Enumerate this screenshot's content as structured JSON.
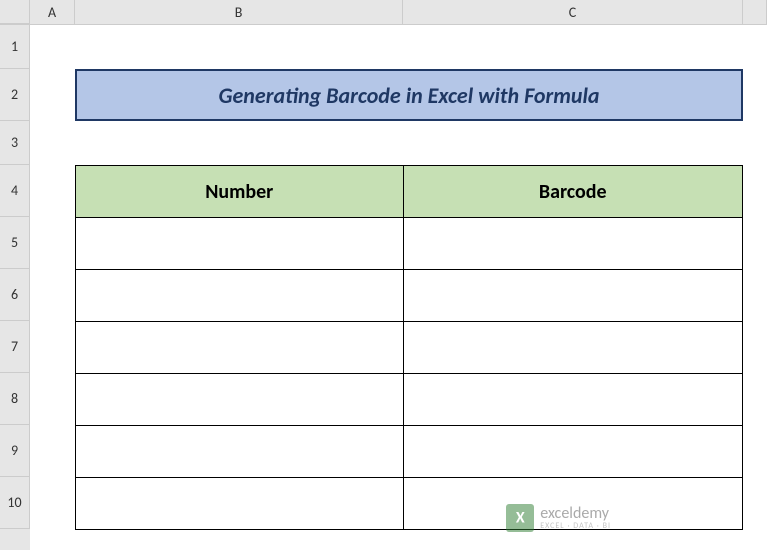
{
  "columns": {
    "A": "A",
    "B": "B",
    "C": "C"
  },
  "rows": {
    "r1": "1",
    "r2": "2",
    "r3": "3",
    "r4": "4",
    "r5": "5",
    "r6": "6",
    "r7": "7",
    "r8": "8",
    "r9": "9",
    "r10": "10"
  },
  "title": "Generating Barcode in Excel with Formula",
  "table": {
    "headers": {
      "number": "Number",
      "barcode": "Barcode"
    },
    "rows": [
      {
        "number": "",
        "barcode": ""
      },
      {
        "number": "",
        "barcode": ""
      },
      {
        "number": "",
        "barcode": ""
      },
      {
        "number": "",
        "barcode": ""
      },
      {
        "number": "",
        "barcode": ""
      },
      {
        "number": "",
        "barcode": ""
      }
    ]
  },
  "watermark": {
    "brand": "exceldemy",
    "tagline": "EXCEL · DATA · BI"
  },
  "colors": {
    "title_bg": "#b4c6e7",
    "title_border": "#1f3864",
    "title_text": "#1f3864",
    "header_bg": "#c6e0b4",
    "cell_border": "#000000",
    "grid_header_bg": "#e6e6e6",
    "grid_border": "#cccccc"
  }
}
